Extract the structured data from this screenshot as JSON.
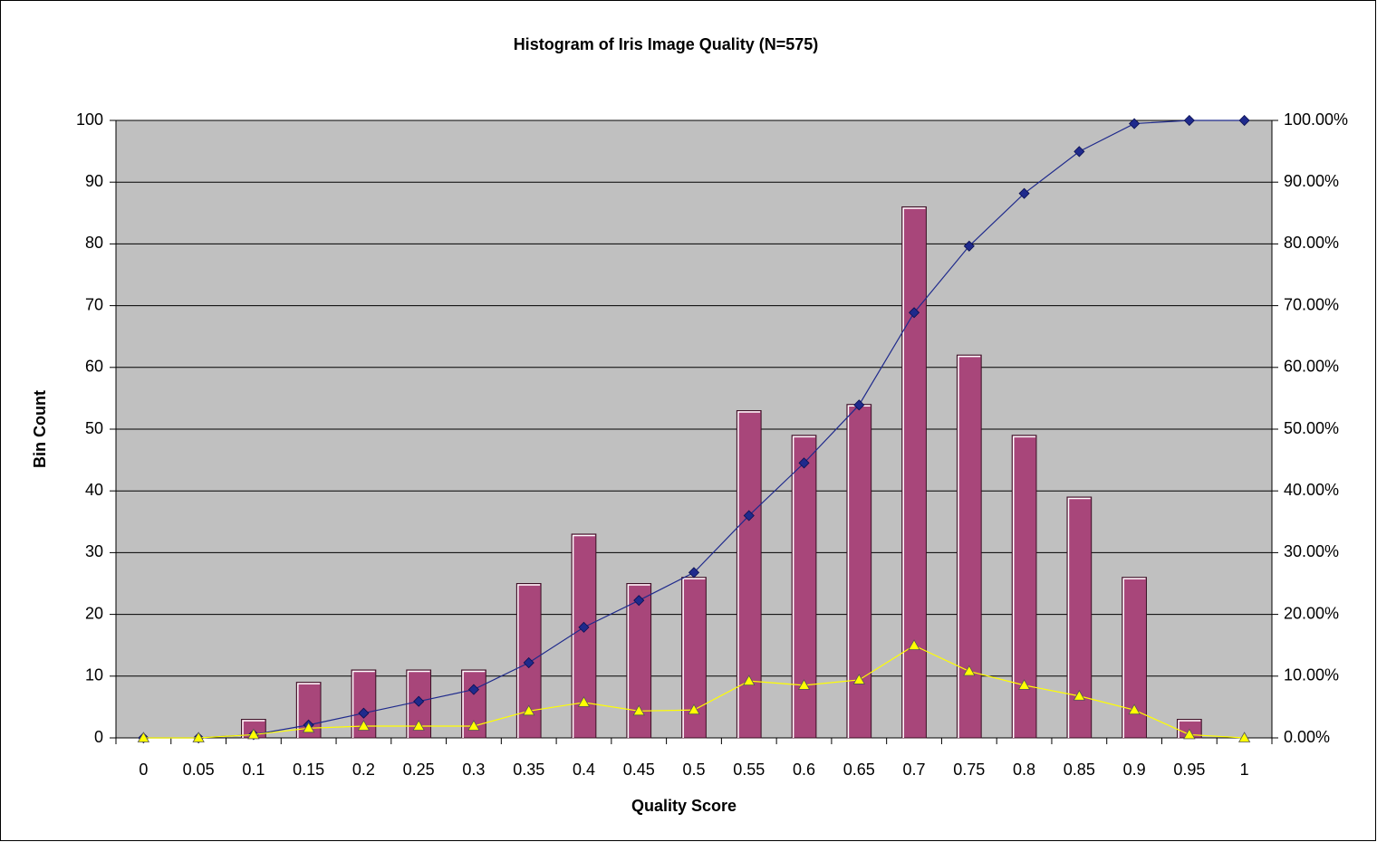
{
  "chart_data": {
    "type": "bar",
    "title": "Histogram of Iris Image Quality (N=575)",
    "x_label": "Quality Score",
    "y_label": "Bin Count",
    "categories": [
      "0",
      "0.05",
      "0.1",
      "0.15",
      "0.2",
      "0.25",
      "0.3",
      "0.35",
      "0.4",
      "0.45",
      "0.5",
      "0.55",
      "0.6",
      "0.65",
      "0.7",
      "0.75",
      "0.8",
      "0.85",
      "0.9",
      "0.95",
      "1"
    ],
    "series": [
      {
        "type": "bar",
        "color": "#a8467a",
        "values": [
          0,
          0,
          3,
          9,
          11,
          11,
          11,
          25,
          33,
          25,
          26,
          53,
          49,
          54,
          86,
          62,
          49,
          39,
          26,
          3,
          0
        ]
      },
      {
        "type": "line",
        "axis": "y2",
        "color": "#1f2a8c",
        "marker": "diamond",
        "values": [
          0,
          0,
          0.52,
          2.09,
          4.0,
          5.91,
          7.83,
          12.17,
          17.91,
          22.26,
          26.78,
          36.0,
          44.52,
          53.91,
          68.87,
          79.65,
          88.17,
          94.96,
          99.48,
          100,
          100
        ]
      },
      {
        "type": "line",
        "axis": "y2",
        "color": "#ffff00",
        "marker": "triangle",
        "values": [
          0,
          0,
          0.52,
          1.57,
          1.91,
          1.91,
          1.91,
          4.35,
          5.74,
          4.35,
          4.52,
          9.22,
          8.52,
          9.39,
          14.96,
          10.78,
          8.52,
          6.78,
          4.52,
          0.52,
          0
        ]
      }
    ],
    "ylim": [
      0,
      100
    ],
    "yticks": [
      0,
      10,
      20,
      30,
      40,
      50,
      60,
      70,
      80,
      90,
      100
    ],
    "y2lim": [
      0,
      100
    ],
    "y2ticks": [
      {
        "value": 0,
        "label": "0.00%"
      },
      {
        "value": 10,
        "label": "10.00%"
      },
      {
        "value": 20,
        "label": "20.00%"
      },
      {
        "value": 30,
        "label": "30.00%"
      },
      {
        "value": 40,
        "label": "40.00%"
      },
      {
        "value": 50,
        "label": "50.00%"
      },
      {
        "value": 60,
        "label": "60.00%"
      },
      {
        "value": 70,
        "label": "70.00%"
      },
      {
        "value": 80,
        "label": "80.00%"
      },
      {
        "value": 90,
        "label": "90.00%"
      },
      {
        "value": 100,
        "label": "100.00%"
      }
    ],
    "grid": true,
    "plot_background": "#c0c0c0"
  }
}
